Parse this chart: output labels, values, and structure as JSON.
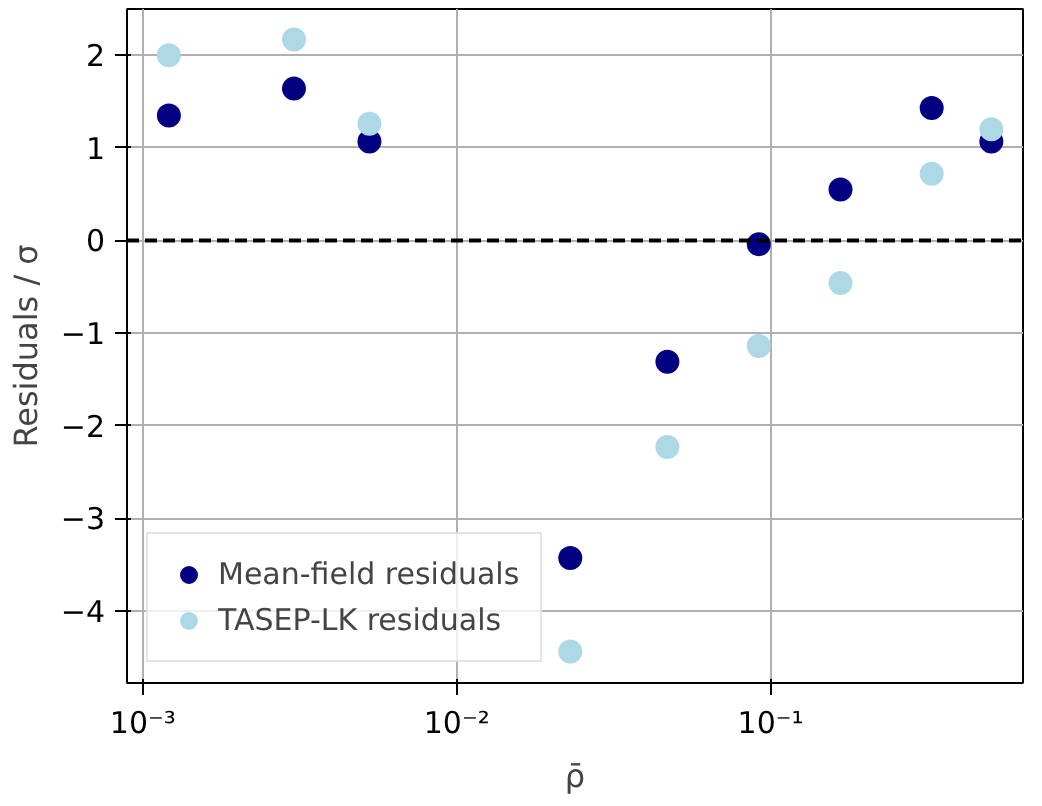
{
  "chart_data": {
    "type": "scatter",
    "xlabel": "ρ̄",
    "ylabel": "Residuals / σ",
    "log": "x",
    "x": [
      0.00121,
      0.00303,
      0.00527,
      0.023,
      0.0469,
      0.0917,
      0.167,
      0.326,
      0.505
    ],
    "series": [
      {
        "name": "Mean-field residuals",
        "color": "#000080",
        "values": [
          1.35,
          1.64,
          1.07,
          -3.43,
          -1.31,
          -0.04,
          0.55,
          1.43,
          1.07
        ]
      },
      {
        "name": "TASEP-LK residuals",
        "color": "#add8e6",
        "values": [
          2.0,
          2.17,
          1.26,
          -4.44,
          -2.23,
          -1.14,
          -0.46,
          0.72,
          1.2
        ]
      }
    ],
    "xlim": [
      0.00089,
      0.637
    ],
    "ylim": [
      -4.78,
      2.5
    ],
    "xticks": [
      {
        "value": 0.001,
        "label": "10⁻³"
      },
      {
        "value": 0.01,
        "label": "10⁻²"
      },
      {
        "value": 0.1,
        "label": "10⁻¹"
      }
    ],
    "yticks": [
      -4,
      -3,
      -2,
      -1,
      0,
      1,
      2
    ],
    "ref_lines": [
      {
        "axis": "y",
        "value": 0,
        "color": "#000000",
        "line_style": "dashed"
      }
    ],
    "grid": true,
    "legend": "bottom left",
    "marker": "circle"
  }
}
